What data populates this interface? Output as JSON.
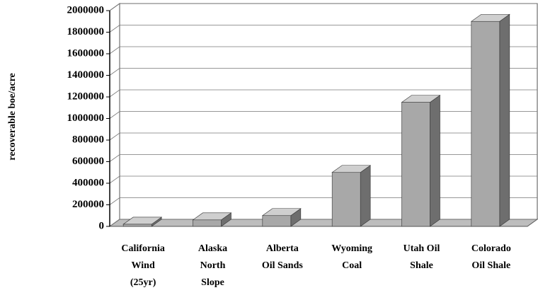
{
  "chart_data": {
    "type": "bar3d",
    "y_label": "recoverable boe/acre",
    "categories": [
      "California\nWind\n(25yr)",
      "Alaska\nNorth\nSlope",
      "Alberta\nOil Sands",
      "Wyoming\nCoal",
      "Utah Oil\nShale",
      "Colorado\nOil Shale"
    ],
    "values": [
      20000,
      60000,
      100000,
      500000,
      1150000,
      1900000
    ],
    "color": "#a8a8a8",
    "ylim": [
      0,
      2000000
    ],
    "yticks": [
      0,
      200000,
      400000,
      600000,
      800000,
      1000000,
      1200000,
      1400000,
      1600000,
      1800000,
      2000000
    ],
    "grid": true
  }
}
